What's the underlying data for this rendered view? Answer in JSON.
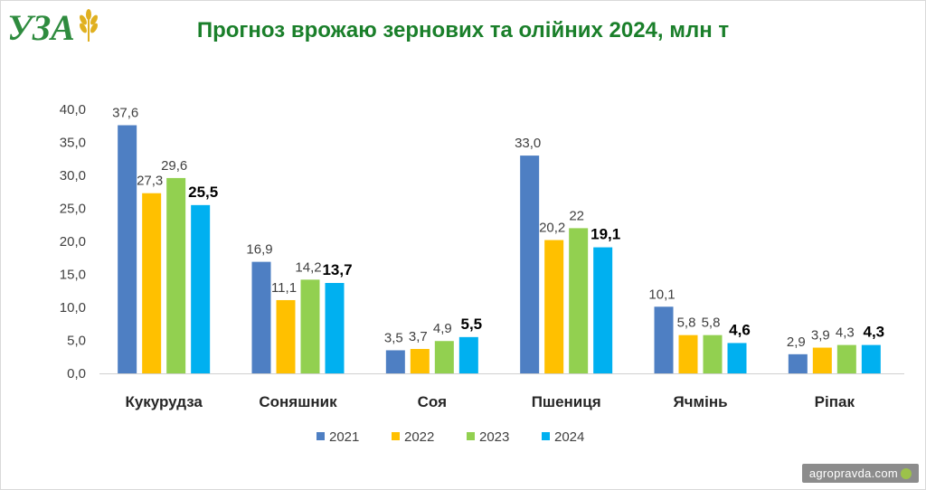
{
  "brand": {
    "logo_text": "УЗА"
  },
  "title": "Прогноз врожаю зернових та олійних 2024, млн т",
  "watermark": "agropravda.com",
  "colors": {
    "title": "#1a7f2a",
    "series": [
      "#4e7fc3",
      "#ffc000",
      "#92d050",
      "#00b0f0"
    ]
  },
  "chart_data": {
    "type": "bar",
    "title": "Прогноз врожаю зернових та олійних 2024, млн т",
    "categories": [
      "Кукурудза",
      "Соняшник",
      "Соя",
      "Пшениця",
      "Ячмінь",
      "Ріпак"
    ],
    "series": [
      {
        "name": "2021",
        "values": [
          37.6,
          16.9,
          3.5,
          33.0,
          10.1,
          2.9
        ],
        "labels": [
          "37,6",
          "16,9",
          "3,5",
          "33,0",
          "10,1",
          "2,9"
        ]
      },
      {
        "name": "2022",
        "values": [
          27.3,
          11.1,
          3.7,
          20.2,
          5.8,
          3.9
        ],
        "labels": [
          "27,3",
          "11,1",
          "3,7",
          "20,2",
          "5,8",
          "3,9"
        ]
      },
      {
        "name": "2023",
        "values": [
          29.6,
          14.2,
          4.9,
          22.0,
          5.8,
          4.3
        ],
        "labels": [
          "29,6",
          "14,2",
          "4,9",
          "22",
          "5,8",
          "4,3"
        ]
      },
      {
        "name": "2024",
        "values": [
          25.5,
          13.7,
          5.5,
          19.1,
          4.6,
          4.3
        ],
        "labels": [
          "25,5",
          "13,7",
          "5,5",
          "19,1",
          "4,6",
          "4,3"
        ]
      }
    ],
    "y_ticks": [
      "0,0",
      "5,0",
      "10,0",
      "15,0",
      "20,0",
      "25,0",
      "30,0",
      "35,0",
      "40,0"
    ],
    "ylim": [
      0,
      40
    ],
    "xlabel": "",
    "ylabel": "",
    "grid": false,
    "legend_position": "bottom"
  }
}
